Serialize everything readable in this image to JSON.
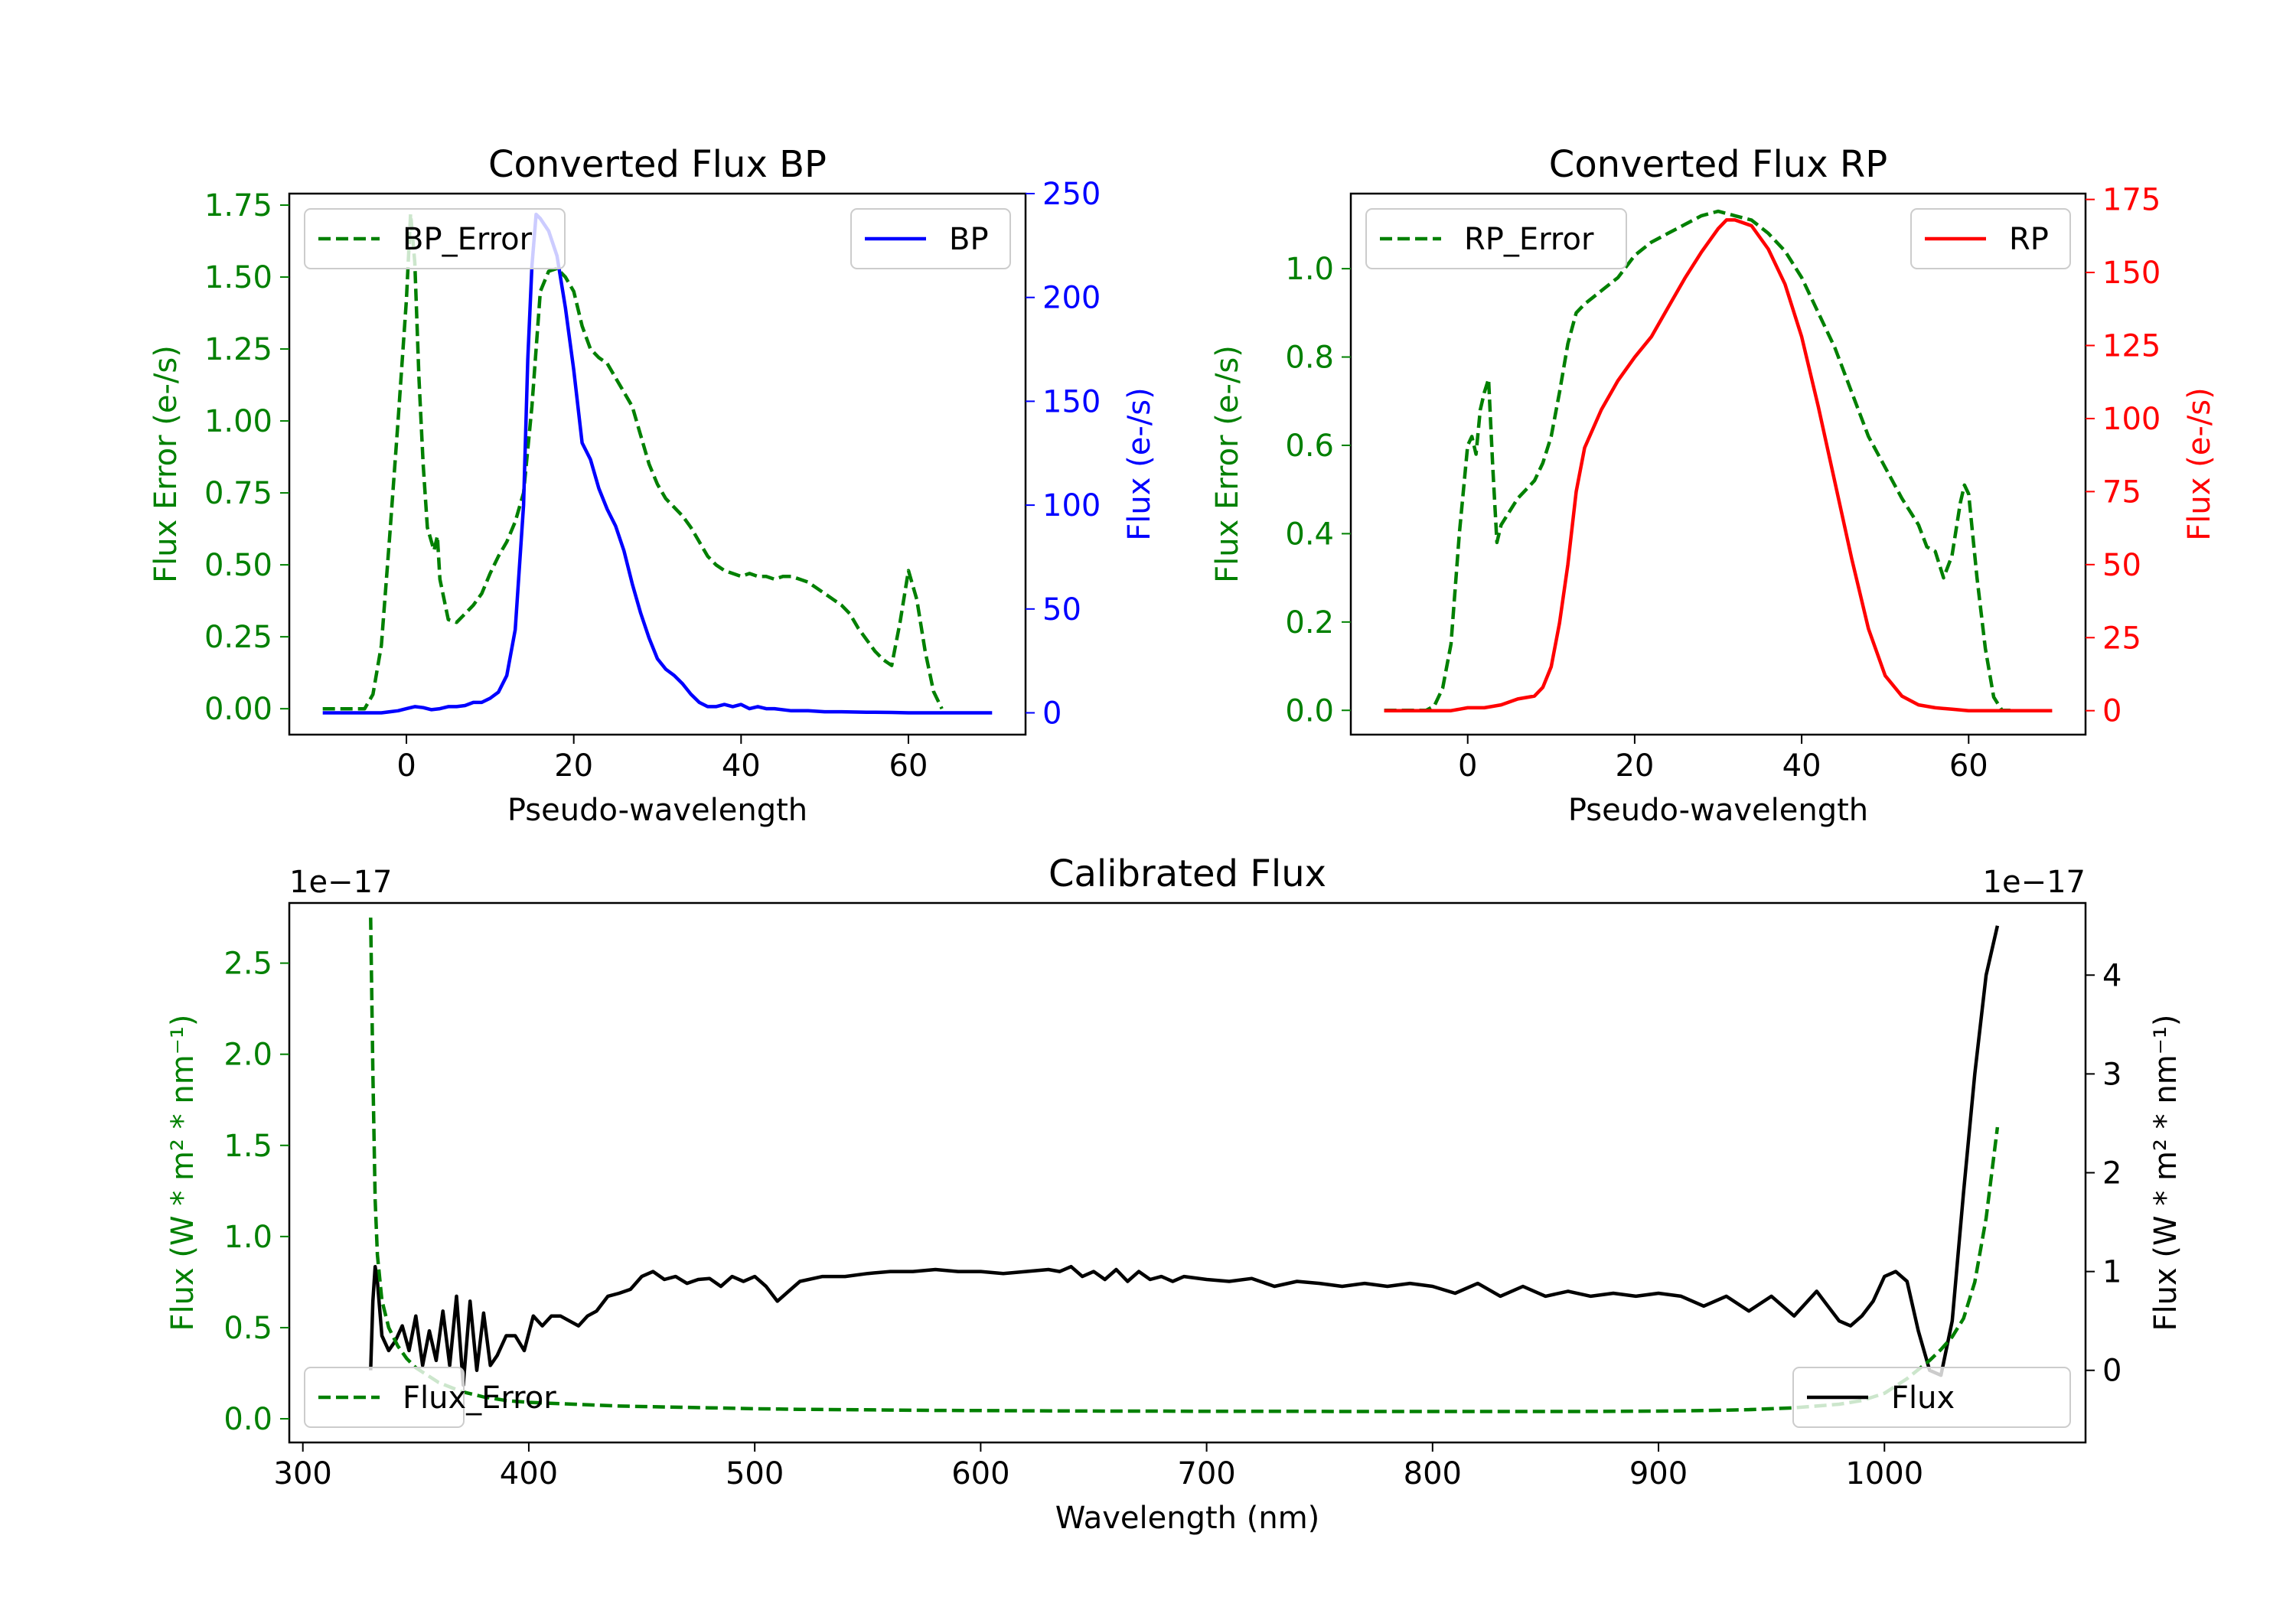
{
  "chart_data": [
    {
      "type": "line",
      "title": "Converted Flux BP",
      "xlabel": "Pseudo-wavelength",
      "ylabel_left": "Flux Error (e-/s)",
      "ylabel_right": "Flux (e-/s)",
      "xlim": [
        -14,
        74
      ],
      "ylim_left": [
        -0.09,
        1.79
      ],
      "ylim_right": [
        -10.5,
        250
      ],
      "x_ticks": [
        0,
        20,
        40,
        60
      ],
      "y_ticks_left": [
        0.0,
        0.25,
        0.5,
        0.75,
        1.0,
        1.25,
        1.5,
        1.75
      ],
      "y_ticks_left_labels": [
        "0.00",
        "0.25",
        "0.50",
        "0.75",
        "1.00",
        "1.25",
        "1.50",
        "1.75"
      ],
      "y_ticks_right": [
        0,
        50,
        100,
        150,
        200,
        250
      ],
      "left_axis_color": "#008000",
      "right_axis_color": "#0000ff",
      "legend_left": "top-left",
      "legend_right": "top-right",
      "series": [
        {
          "name": "BP_Error",
          "axis": "left",
          "style": "dashed",
          "color": "#008000",
          "x": [
            -10,
            -5,
            -4,
            -3,
            -2,
            -1,
            0,
            0.5,
            1,
            1.5,
            2,
            2.5,
            3,
            3.3,
            3.7,
            4,
            5,
            6,
            7,
            8,
            9,
            10,
            11,
            12,
            13,
            14,
            15,
            16,
            17,
            18,
            19,
            20,
            21,
            22,
            23,
            24,
            25,
            26,
            27,
            28,
            29,
            30,
            31,
            32,
            33,
            34,
            35,
            36,
            37,
            38,
            39,
            40,
            41,
            42,
            43,
            44,
            45,
            46,
            47,
            48,
            49,
            50,
            51,
            52,
            53,
            54,
            55,
            56,
            57,
            58,
            59,
            60,
            61,
            62,
            63,
            64
          ],
          "y": [
            0.0,
            0.0,
            0.05,
            0.22,
            0.6,
            1.0,
            1.42,
            1.72,
            1.55,
            1.15,
            0.85,
            0.63,
            0.58,
            0.55,
            0.6,
            0.45,
            0.31,
            0.3,
            0.33,
            0.36,
            0.4,
            0.47,
            0.53,
            0.58,
            0.65,
            0.75,
            1.05,
            1.45,
            1.52,
            1.53,
            1.5,
            1.45,
            1.33,
            1.25,
            1.22,
            1.2,
            1.15,
            1.1,
            1.05,
            0.95,
            0.85,
            0.78,
            0.73,
            0.7,
            0.67,
            0.63,
            0.58,
            0.53,
            0.5,
            0.48,
            0.47,
            0.46,
            0.47,
            0.46,
            0.46,
            0.45,
            0.46,
            0.46,
            0.45,
            0.44,
            0.42,
            0.4,
            0.38,
            0.36,
            0.33,
            0.28,
            0.24,
            0.2,
            0.17,
            0.15,
            0.3,
            0.48,
            0.38,
            0.2,
            0.06,
            0.0
          ]
        },
        {
          "name": "BP",
          "axis": "right",
          "style": "solid",
          "color": "#0000ff",
          "x": [
            -10,
            -5,
            -3,
            -1,
            0,
            1,
            2,
            3,
            4,
            5,
            6,
            7,
            8,
            9,
            10,
            11,
            12,
            13,
            14,
            14.5,
            15,
            15.5,
            16,
            17,
            18,
            19,
            20,
            21,
            22,
            23,
            24,
            25,
            26,
            27,
            28,
            29,
            30,
            31,
            32,
            33,
            34,
            35,
            36,
            37,
            38,
            39,
            40,
            41,
            42,
            43,
            44,
            46,
            48,
            50,
            52,
            55,
            58,
            60,
            62,
            65,
            70
          ],
          "y": [
            0,
            0,
            0,
            1,
            2,
            3,
            2.5,
            1.5,
            2,
            3,
            3,
            3.5,
            5,
            5,
            7,
            10,
            18,
            40,
            100,
            170,
            215,
            240,
            238,
            232,
            220,
            195,
            165,
            130,
            122,
            108,
            98,
            90,
            78,
            62,
            48,
            36,
            26,
            21,
            18,
            14,
            9,
            5,
            3,
            3,
            4,
            3,
            4,
            2,
            3,
            2,
            2,
            1,
            1,
            0.5,
            0.5,
            0.3,
            0.2,
            0,
            0,
            0,
            0
          ]
        }
      ]
    },
    {
      "type": "line",
      "title": "Converted Flux RP",
      "xlabel": "Pseudo-wavelength",
      "ylabel_left": "Flux Error (e-/s)",
      "ylabel_right": "Flux (e-/s)",
      "xlim": [
        -14,
        74
      ],
      "ylim_left": [
        -0.055,
        1.17
      ],
      "ylim_right": [
        -8.2,
        177
      ],
      "x_ticks": [
        0,
        20,
        40,
        60
      ],
      "y_ticks_left": [
        0.0,
        0.2,
        0.4,
        0.6,
        0.8,
        1.0
      ],
      "y_ticks_left_labels": [
        "0.0",
        "0.2",
        "0.4",
        "0.6",
        "0.8",
        "1.0"
      ],
      "y_ticks_right": [
        0,
        25,
        50,
        75,
        100,
        125,
        150,
        175
      ],
      "left_axis_color": "#008000",
      "right_axis_color": "#ff0000",
      "legend_left": "top-left",
      "legend_right": "top-right",
      "series": [
        {
          "name": "RP_Error",
          "axis": "left",
          "style": "dashed",
          "color": "#008000",
          "x": [
            -10,
            -5,
            -4,
            -3,
            -2,
            -1,
            0,
            0.5,
            1,
            1.5,
            2,
            2.5,
            3,
            3.5,
            4,
            5,
            6,
            7,
            8,
            9,
            10,
            11,
            12,
            13,
            14,
            16,
            18,
            20,
            22,
            24,
            26,
            28,
            30,
            32,
            34,
            36,
            38,
            40,
            42,
            44,
            46,
            48,
            50,
            52,
            54,
            55,
            56,
            57,
            58,
            59,
            59.5,
            60,
            61,
            62,
            63,
            64,
            65
          ],
          "y": [
            0.0,
            0.0,
            0.01,
            0.05,
            0.15,
            0.4,
            0.6,
            0.62,
            0.58,
            0.68,
            0.72,
            0.75,
            0.55,
            0.38,
            0.42,
            0.45,
            0.48,
            0.5,
            0.52,
            0.56,
            0.62,
            0.72,
            0.83,
            0.9,
            0.92,
            0.95,
            0.98,
            1.03,
            1.06,
            1.08,
            1.1,
            1.12,
            1.13,
            1.12,
            1.11,
            1.08,
            1.04,
            0.98,
            0.9,
            0.82,
            0.72,
            0.62,
            0.55,
            0.48,
            0.42,
            0.37,
            0.36,
            0.3,
            0.35,
            0.47,
            0.51,
            0.49,
            0.3,
            0.14,
            0.03,
            0.0,
            0.0
          ]
        },
        {
          "name": "RP",
          "axis": "right",
          "style": "solid",
          "color": "#ff0000",
          "x": [
            -10,
            -5,
            -2,
            0,
            2,
            3,
            4,
            5,
            6,
            7,
            8,
            9,
            10,
            11,
            12,
            13,
            14,
            16,
            18,
            20,
            22,
            24,
            26,
            28,
            30,
            31,
            32,
            34,
            36,
            38,
            40,
            42,
            44,
            46,
            48,
            50,
            52,
            54,
            56,
            58,
            60,
            65,
            70
          ],
          "y": [
            0,
            0,
            0,
            1,
            1,
            1.5,
            2,
            3,
            4,
            4.5,
            5,
            8,
            15,
            30,
            50,
            75,
            90,
            103,
            113,
            121,
            128,
            138,
            148,
            157,
            165,
            168,
            168,
            166,
            158,
            146,
            128,
            104,
            78,
            52,
            28,
            12,
            5,
            2,
            1,
            0.5,
            0,
            0,
            0
          ]
        }
      ]
    },
    {
      "type": "line",
      "title": "Calibrated Flux",
      "xlabel": "Wavelength (nm)",
      "ylabel_left": "Flux (W * m² * nm⁻¹)",
      "ylabel_right": "Flux (W * m² * nm⁻¹)",
      "offset_label_left": "1e−17",
      "offset_label_right": "1e−17",
      "xlim": [
        294,
        1089
      ],
      "ylim_left": [
        -0.13,
        2.83
      ],
      "ylim_right": [
        -0.73,
        4.73
      ],
      "x_ticks": [
        300,
        400,
        500,
        600,
        700,
        800,
        900,
        1000
      ],
      "y_ticks_left": [
        0.0,
        0.5,
        1.0,
        1.5,
        2.0,
        2.5
      ],
      "y_ticks_left_labels": [
        "0.0",
        "0.5",
        "1.0",
        "1.5",
        "2.0",
        "2.5"
      ],
      "y_ticks_right": [
        0,
        1,
        2,
        3,
        4
      ],
      "left_axis_color": "#008000",
      "right_axis_color": "#000000",
      "legend_left": "bottom-left",
      "legend_right": "bottom-right",
      "series": [
        {
          "name": "Flux",
          "axis": "right",
          "style": "solid",
          "color": "#000000",
          "x": [
            330,
            331,
            332,
            333,
            335,
            338,
            341,
            344,
            347,
            350,
            353,
            356,
            359,
            362,
            365,
            368,
            371,
            374,
            377,
            380,
            383,
            386,
            390,
            394,
            398,
            402,
            406,
            410,
            414,
            418,
            422,
            426,
            430,
            435,
            440,
            445,
            450,
            455,
            460,
            465,
            470,
            475,
            480,
            485,
            490,
            495,
            500,
            505,
            510,
            515,
            520,
            530,
            540,
            550,
            560,
            570,
            580,
            590,
            600,
            610,
            620,
            630,
            635,
            640,
            645,
            650,
            655,
            660,
            665,
            670,
            675,
            680,
            685,
            690,
            700,
            710,
            720,
            730,
            740,
            750,
            760,
            770,
            780,
            790,
            800,
            810,
            820,
            830,
            840,
            850,
            860,
            870,
            880,
            890,
            900,
            910,
            920,
            930,
            940,
            950,
            960,
            970,
            975,
            980,
            985,
            990,
            995,
            1000,
            1005,
            1010,
            1015,
            1020,
            1025,
            1030,
            1035,
            1040,
            1045,
            1050
          ],
          "y": [
            0.0,
            0.7,
            1.05,
            0.9,
            0.35,
            0.2,
            0.3,
            0.45,
            0.2,
            0.55,
            0.05,
            0.4,
            0.1,
            0.6,
            0.05,
            0.75,
            -0.15,
            0.7,
            0.0,
            0.58,
            0.05,
            0.15,
            0.35,
            0.35,
            0.2,
            0.55,
            0.45,
            0.55,
            0.55,
            0.5,
            0.45,
            0.55,
            0.6,
            0.75,
            0.78,
            0.82,
            0.95,
            1.0,
            0.92,
            0.95,
            0.88,
            0.92,
            0.93,
            0.85,
            0.95,
            0.9,
            0.95,
            0.85,
            0.7,
            0.8,
            0.9,
            0.95,
            0.95,
            0.98,
            1.0,
            1.0,
            1.02,
            1.0,
            1.0,
            0.98,
            1.0,
            1.02,
            1.0,
            1.05,
            0.95,
            1.0,
            0.92,
            1.02,
            0.9,
            1.0,
            0.92,
            0.95,
            0.9,
            0.95,
            0.92,
            0.9,
            0.93,
            0.85,
            0.9,
            0.88,
            0.85,
            0.88,
            0.85,
            0.88,
            0.85,
            0.78,
            0.88,
            0.75,
            0.85,
            0.75,
            0.8,
            0.75,
            0.78,
            0.75,
            0.78,
            0.75,
            0.65,
            0.75,
            0.6,
            0.75,
            0.55,
            0.8,
            0.65,
            0.5,
            0.45,
            0.55,
            0.7,
            0.95,
            1.0,
            0.9,
            0.4,
            0.0,
            -0.05,
            0.5,
            1.8,
            3.0,
            4.0,
            4.5
          ]
        },
        {
          "name": "Flux_Error",
          "axis": "left",
          "style": "dashed",
          "color": "#008000",
          "x": [
            330,
            331,
            332,
            333,
            335,
            338,
            342,
            346,
            350,
            360,
            370,
            380,
            390,
            400,
            420,
            440,
            460,
            480,
            500,
            520,
            540,
            560,
            580,
            600,
            620,
            640,
            660,
            680,
            700,
            720,
            740,
            760,
            780,
            800,
            820,
            840,
            860,
            880,
            900,
            920,
            940,
            960,
            980,
            990,
            1000,
            1005,
            1010,
            1015,
            1020,
            1025,
            1030,
            1035,
            1040,
            1045,
            1050
          ],
          "y": [
            2.75,
            1.9,
            1.2,
            0.9,
            0.65,
            0.5,
            0.4,
            0.33,
            0.28,
            0.2,
            0.15,
            0.12,
            0.1,
            0.09,
            0.08,
            0.07,
            0.065,
            0.06,
            0.055,
            0.052,
            0.05,
            0.048,
            0.046,
            0.045,
            0.044,
            0.043,
            0.042,
            0.042,
            0.041,
            0.041,
            0.041,
            0.04,
            0.04,
            0.04,
            0.04,
            0.04,
            0.04,
            0.041,
            0.042,
            0.045,
            0.05,
            0.06,
            0.08,
            0.1,
            0.14,
            0.18,
            0.22,
            0.27,
            0.32,
            0.38,
            0.45,
            0.55,
            0.75,
            1.1,
            1.6
          ]
        }
      ]
    }
  ]
}
